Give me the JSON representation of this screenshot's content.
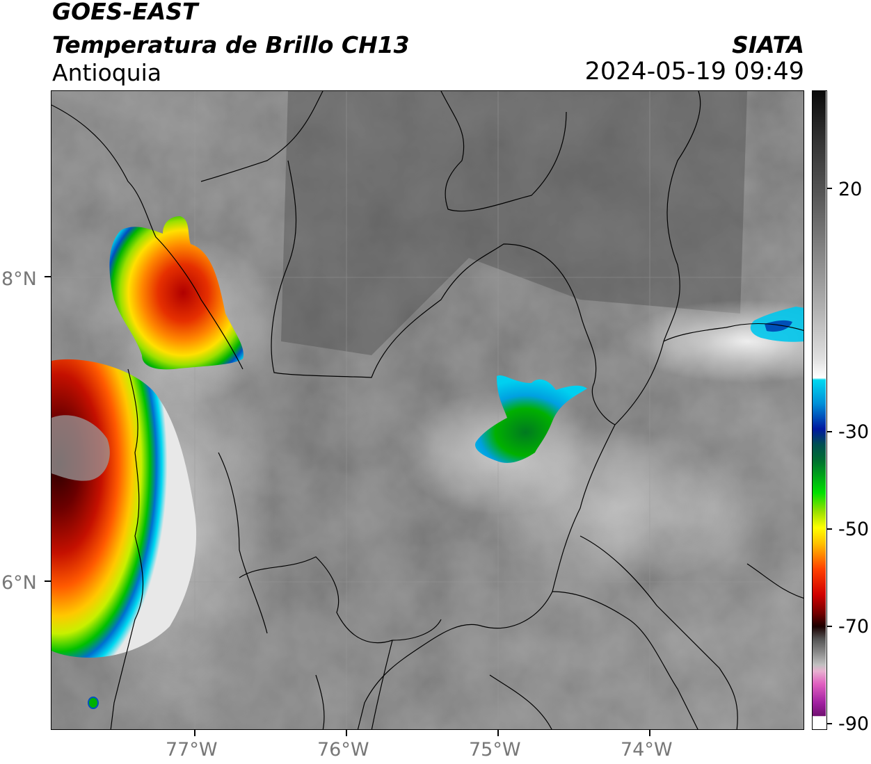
{
  "header": {
    "line1": "GOES-EAST",
    "line2": "Temperatura de Brillo CH13",
    "region": "Antioquia",
    "org": "SIATA",
    "datetime": "2024-05-19 09:49"
  },
  "axes": {
    "lat_labels": [
      "8°N",
      "6°N"
    ],
    "lon_labels": [
      "77°W",
      "76°W",
      "75°W",
      "74°W"
    ]
  },
  "colorbar": {
    "tick_labels": [
      "20",
      "-30",
      "-50",
      "-70",
      "-90"
    ]
  }
}
